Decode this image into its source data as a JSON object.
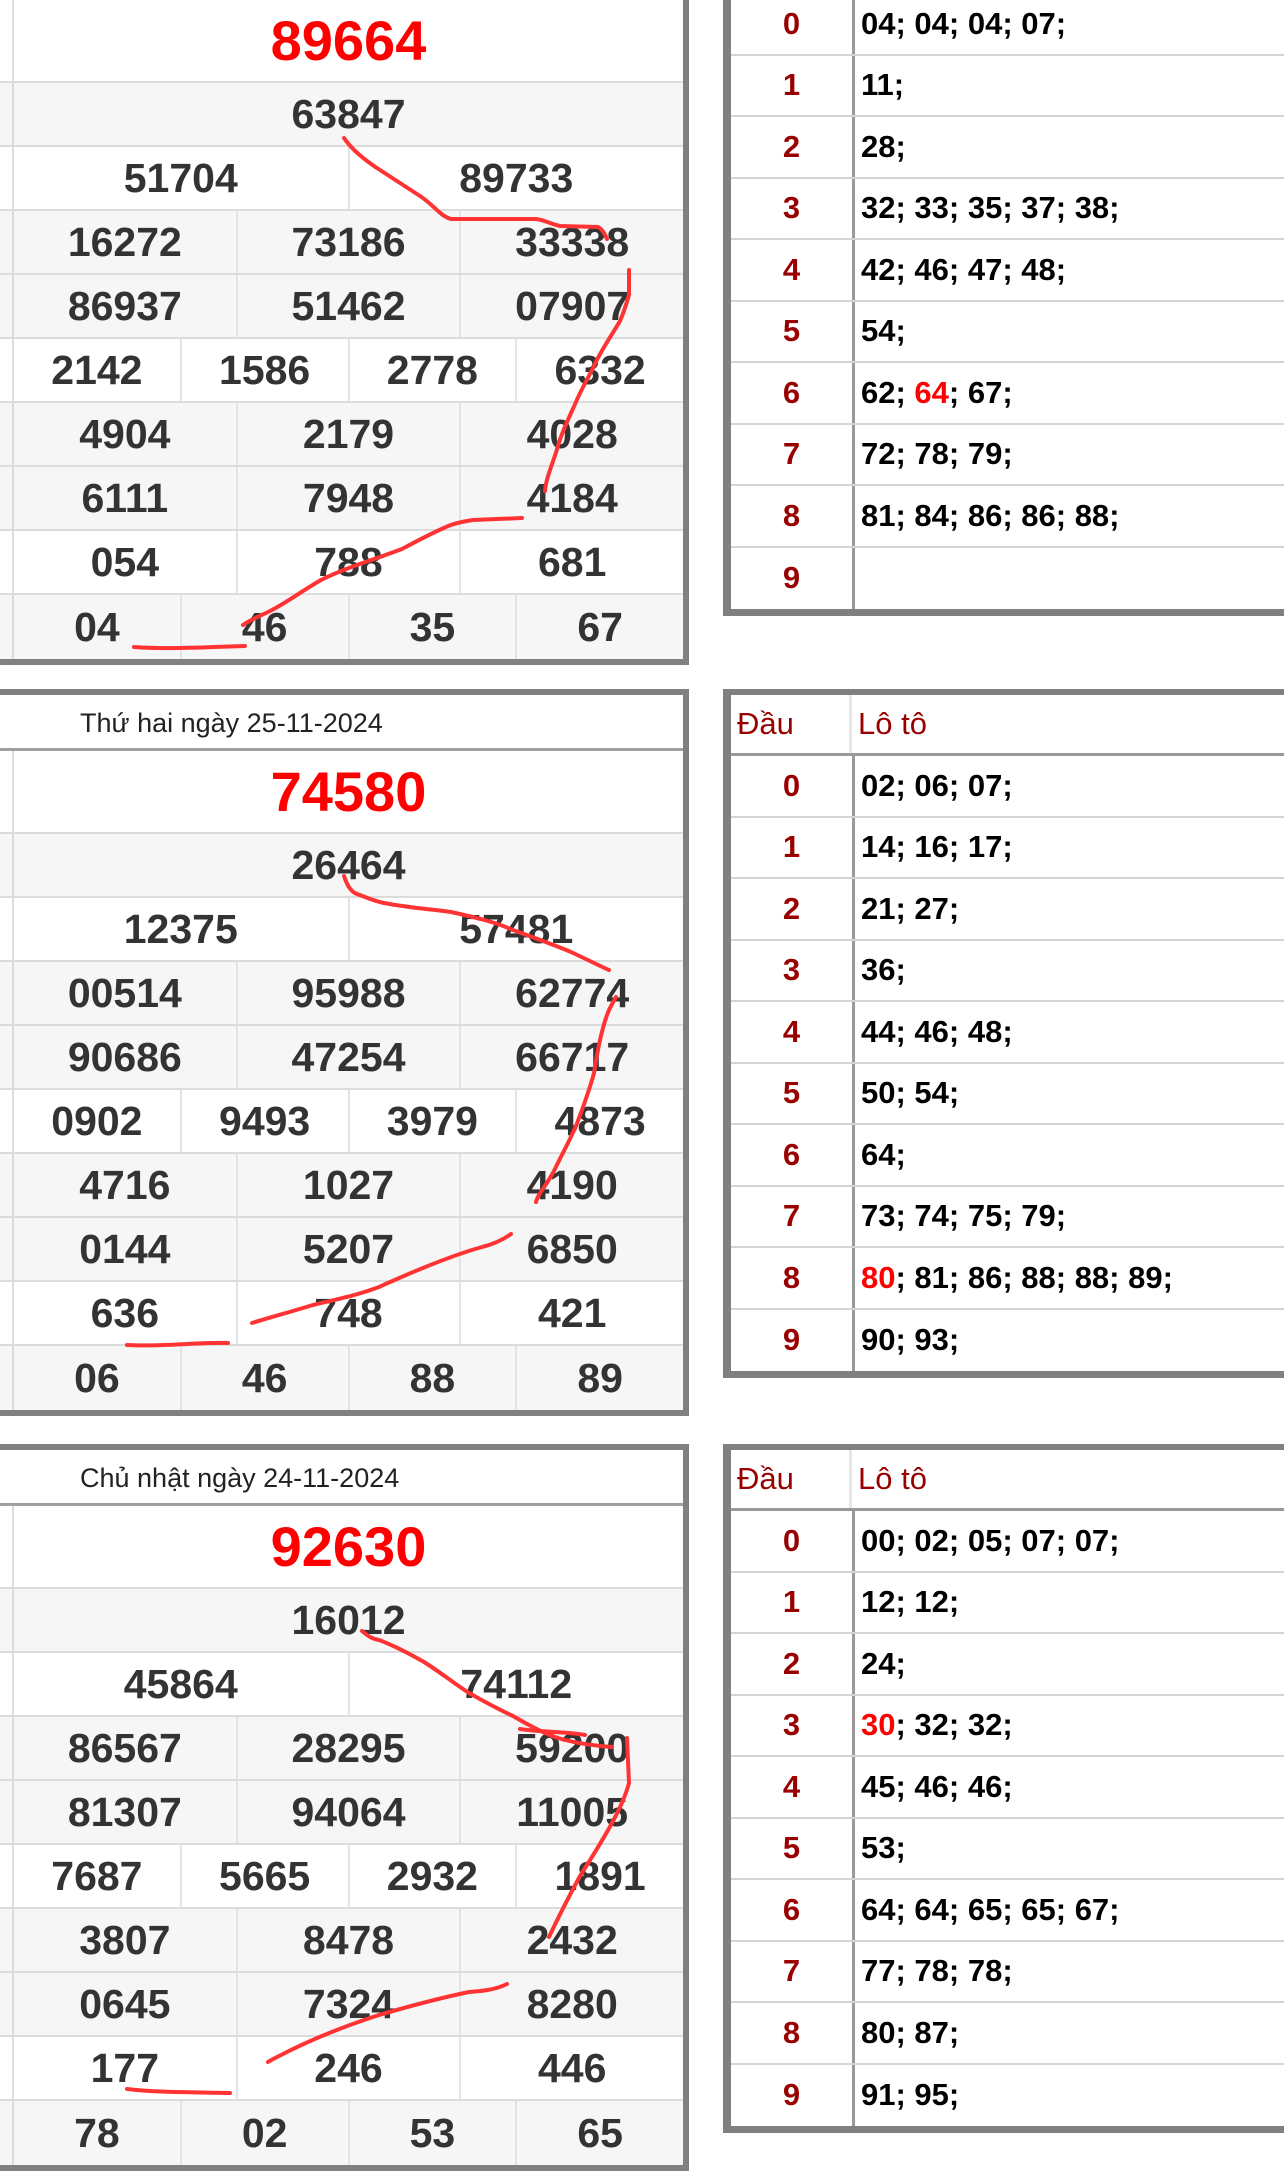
{
  "colors": {
    "special": "#ff0000",
    "head": "#990000",
    "border": "#808080",
    "annotation": "#ff3333"
  },
  "draws": [
    {
      "date_label": null,
      "special": "89664",
      "prizes": [
        [
          "63847"
        ],
        [
          "51704",
          "89733"
        ],
        [
          "16272",
          "73186",
          "33338"
        ],
        [
          "86937",
          "51462",
          "07907"
        ],
        [
          "2142",
          "1586",
          "2778",
          "6332"
        ],
        [
          "4904",
          "2179",
          "4028"
        ],
        [
          "6111",
          "7948",
          "4184"
        ],
        [
          "054",
          "788",
          "681"
        ],
        [
          "04",
          "46",
          "35",
          "67"
        ]
      ],
      "loto": {
        "header": null,
        "rows": [
          {
            "head": "0",
            "values": [
              "04",
              "04",
              "04",
              "07"
            ]
          },
          {
            "head": "1",
            "values": [
              "11"
            ]
          },
          {
            "head": "2",
            "values": [
              "28"
            ]
          },
          {
            "head": "3",
            "values": [
              "32",
              "33",
              "35",
              "37",
              "38"
            ]
          },
          {
            "head": "4",
            "values": [
              "42",
              "46",
              "47",
              "48"
            ]
          },
          {
            "head": "5",
            "values": [
              "54"
            ]
          },
          {
            "head": "6",
            "values": [
              "62",
              "64",
              "67"
            ],
            "highlight": 1
          },
          {
            "head": "7",
            "values": [
              "72",
              "78",
              "79"
            ]
          },
          {
            "head": "8",
            "values": [
              "81",
              "84",
              "86",
              "86",
              "88"
            ]
          },
          {
            "head": "9",
            "values": []
          }
        ]
      }
    },
    {
      "date_label": "Thứ hai ngày 25-11-2024",
      "special": "74580",
      "prizes": [
        [
          "26464"
        ],
        [
          "12375",
          "57481"
        ],
        [
          "00514",
          "95988",
          "62774"
        ],
        [
          "90686",
          "47254",
          "66717"
        ],
        [
          "0902",
          "9493",
          "3979",
          "4873"
        ],
        [
          "4716",
          "1027",
          "4190"
        ],
        [
          "0144",
          "5207",
          "6850"
        ],
        [
          "636",
          "748",
          "421"
        ],
        [
          "06",
          "46",
          "88",
          "89"
        ]
      ],
      "loto": {
        "header": {
          "head": "Đầu",
          "values": "Lô tô"
        },
        "rows": [
          {
            "head": "0",
            "values": [
              "02",
              "06",
              "07"
            ]
          },
          {
            "head": "1",
            "values": [
              "14",
              "16",
              "17"
            ]
          },
          {
            "head": "2",
            "values": [
              "21",
              "27"
            ]
          },
          {
            "head": "3",
            "values": [
              "36"
            ]
          },
          {
            "head": "4",
            "values": [
              "44",
              "46",
              "48"
            ]
          },
          {
            "head": "5",
            "values": [
              "50",
              "54"
            ]
          },
          {
            "head": "6",
            "values": [
              "64"
            ]
          },
          {
            "head": "7",
            "values": [
              "73",
              "74",
              "75",
              "79"
            ]
          },
          {
            "head": "8",
            "values": [
              "80",
              "81",
              "86",
              "88",
              "88",
              "89"
            ],
            "highlight": 0
          },
          {
            "head": "9",
            "values": [
              "90",
              "93"
            ]
          }
        ]
      }
    },
    {
      "date_label": "Chủ nhật ngày 24-11-2024",
      "special": "92630",
      "prizes": [
        [
          "16012"
        ],
        [
          "45864",
          "74112"
        ],
        [
          "86567",
          "28295",
          "59200"
        ],
        [
          "81307",
          "94064",
          "11005"
        ],
        [
          "7687",
          "5665",
          "2932",
          "1891"
        ],
        [
          "3807",
          "8478",
          "2432"
        ],
        [
          "0645",
          "7324",
          "8280"
        ],
        [
          "177",
          "246",
          "446"
        ],
        [
          "78",
          "02",
          "53",
          "65"
        ]
      ],
      "loto": {
        "header": {
          "head": "Đầu",
          "values": "Lô tô"
        },
        "rows": [
          {
            "head": "0",
            "values": [
              "00",
              "02",
              "05",
              "07",
              "07"
            ]
          },
          {
            "head": "1",
            "values": [
              "12",
              "12"
            ]
          },
          {
            "head": "2",
            "values": [
              "24"
            ]
          },
          {
            "head": "3",
            "values": [
              "30",
              "32",
              "32"
            ],
            "highlight": 0
          },
          {
            "head": "4",
            "values": [
              "45",
              "46",
              "46"
            ]
          },
          {
            "head": "5",
            "values": [
              "53"
            ]
          },
          {
            "head": "6",
            "values": [
              "64",
              "64",
              "65",
              "65",
              "67"
            ]
          },
          {
            "head": "7",
            "values": [
              "77",
              "78",
              "78"
            ]
          },
          {
            "head": "8",
            "values": [
              "80",
              "87"
            ]
          },
          {
            "head": "9",
            "values": [
              "91",
              "95"
            ]
          }
        ]
      }
    }
  ]
}
